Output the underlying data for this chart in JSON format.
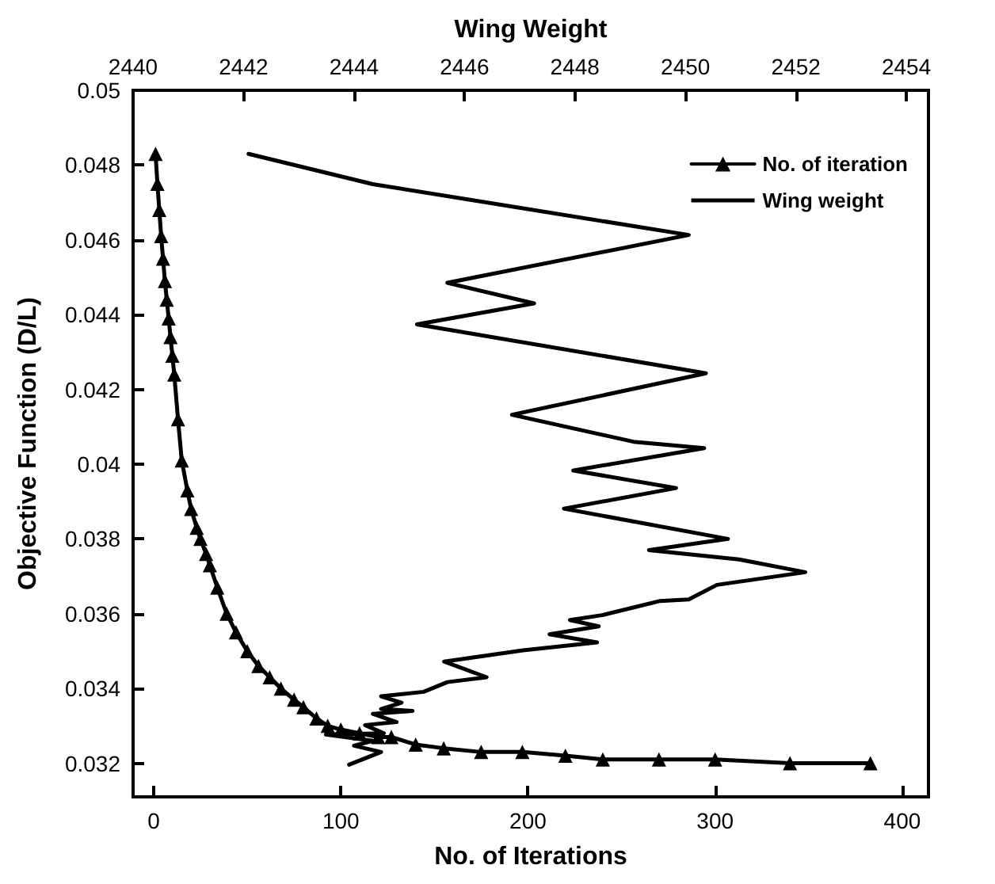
{
  "chart_data": {
    "type": "line",
    "xlabel": "No. of Iterations",
    "x2label": "Wing Weight",
    "ylabel": "Objective Function (D/L)",
    "xlim": [
      -11,
      414
    ],
    "xticks": [
      0,
      100,
      200,
      300,
      400
    ],
    "x2lim": [
      2440,
      2454.4
    ],
    "x2ticks": [
      2440,
      2442,
      2444,
      2446,
      2448,
      2450,
      2452,
      2454
    ],
    "ylim": [
      0.0311,
      0.05
    ],
    "yticks": [
      0.032,
      0.034,
      0.036,
      0.038,
      0.04,
      0.042,
      0.044,
      0.046,
      0.048,
      0.05
    ],
    "legend": "top right",
    "line_style": "solid",
    "series": [
      {
        "name": "No. of iteration",
        "color": "#000000",
        "marker": "triangle",
        "x": [
          1,
          2,
          3,
          4,
          5,
          6,
          7,
          8,
          9,
          10,
          11,
          13,
          15,
          18,
          20,
          23,
          25,
          28,
          30,
          34,
          39,
          44,
          50,
          56,
          62,
          68,
          75,
          80,
          87,
          93,
          100,
          110,
          120,
          127,
          140,
          155,
          175,
          197,
          220,
          240,
          270,
          300,
          340,
          383
        ],
        "values": [
          0.0483,
          0.0475,
          0.0468,
          0.0461,
          0.0455,
          0.0449,
          0.0444,
          0.0439,
          0.0434,
          0.0429,
          0.0424,
          0.0412,
          0.0401,
          0.0393,
          0.0388,
          0.0383,
          0.038,
          0.0376,
          0.0373,
          0.0367,
          0.036,
          0.0355,
          0.035,
          0.0346,
          0.0343,
          0.034,
          0.0337,
          0.0335,
          0.0332,
          0.033,
          0.0329,
          0.0328,
          0.0327,
          0.0327,
          0.0325,
          0.0324,
          0.0323,
          0.0323,
          0.0322,
          0.0321,
          0.0321,
          0.0321,
          0.032,
          0.032
        ]
      },
      {
        "name": "Wing weight",
        "color": "#000000",
        "marker": "none",
        "axis": "x2",
        "x": [
          2442.09,
          2444.34,
          2450.06,
          2445.69,
          2447.26,
          2445.14,
          2450.37,
          2446.86,
          2449.06,
          2450.34,
          2447.97,
          2449.83,
          2447.8,
          2450.77,
          2449.34,
          2450.97,
          2452.17,
          2450.57,
          2450.06,
          2449.54,
          2448.49,
          2447.91,
          2448.43,
          2447.54,
          2448.4,
          2447.06,
          2445.63,
          2446.4,
          2445.69,
          2445.26,
          2444.49,
          2444.86,
          2444.49,
          2445.06,
          2444.34,
          2444.77,
          2444.2,
          2444.54,
          2443.49,
          2444.34,
          2444.0,
          2444.49,
          2443.91
        ],
        "values": [
          0.0483,
          0.04749,
          0.04613,
          0.04485,
          0.0443,
          0.04374,
          0.04243,
          0.04132,
          0.0406,
          0.04043,
          0.03983,
          0.03936,
          0.03881,
          0.038,
          0.0377,
          0.03745,
          0.03711,
          0.03677,
          0.03638,
          0.03634,
          0.03596,
          0.03583,
          0.03566,
          0.03545,
          0.03523,
          0.03502,
          0.03472,
          0.0343,
          0.03417,
          0.03391,
          0.03379,
          0.03362,
          0.03345,
          0.0334,
          0.03332,
          0.0331,
          0.03302,
          0.0328,
          0.03277,
          0.0326,
          0.03247,
          0.0323,
          0.03196
        ]
      }
    ]
  }
}
